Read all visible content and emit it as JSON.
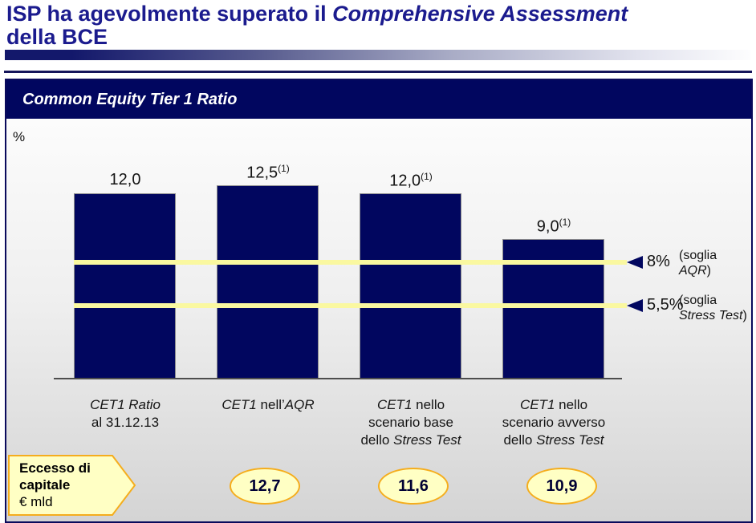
{
  "title": {
    "lines": [
      [
        {
          "t": "ISP ha agevolmente superato il "
        },
        {
          "t": "Comprehensive Assessment",
          "i": true
        }
      ],
      [
        {
          "t": "della BCE"
        }
      ]
    ]
  },
  "panel": {
    "header": "Common Equity Tier 1 Ratio",
    "unit_label": "%"
  },
  "chart_data": {
    "type": "bar",
    "title": "Common Equity Tier 1 Ratio",
    "unit": "%",
    "categories": [
      "CET1 Ratio al 31.12.13",
      "CET1 nell’AQR",
      "CET1 nello scenario base dello Stress Test",
      "CET1 nello scenario avverso dello Stress Test"
    ],
    "categories_rich": [
      [
        [
          {
            "t": "CET1 Ratio",
            "i": true
          }
        ],
        [
          {
            "t": "al 31.12.13"
          }
        ]
      ],
      [
        [
          {
            "t": "CET1",
            "i": true
          },
          {
            "t": " nell’"
          },
          {
            "t": "AQR",
            "i": true
          }
        ]
      ],
      [
        [
          {
            "t": "CET1",
            "i": true
          },
          {
            "t": " nello"
          }
        ],
        [
          {
            "t": "scenario base"
          }
        ],
        [
          {
            "t": "dello "
          },
          {
            "t": "Stress Test",
            "i": true
          }
        ]
      ],
      [
        [
          {
            "t": "CET1",
            "i": true
          },
          {
            "t": " nello"
          }
        ],
        [
          {
            "t": "scenario avverso"
          }
        ],
        [
          {
            "t": "dello "
          },
          {
            "t": "Stress Test",
            "i": true
          }
        ]
      ]
    ],
    "values": [
      12.0,
      12.5,
      12.0,
      9.0
    ],
    "value_labels": [
      {
        "text": "12,0",
        "sup": ""
      },
      {
        "text": "12,5",
        "sup": "(1)"
      },
      {
        "text": "12,0",
        "sup": "(1)"
      },
      {
        "text": "9,0",
        "sup": "(1)"
      }
    ],
    "thresholds": [
      {
        "value": 8.0,
        "label": "8%",
        "note_rich": [
          [
            {
              "t": "(soglia"
            }
          ],
          [
            {
              "t": "AQR",
              "i": true
            },
            {
              "t": ")"
            }
          ]
        ]
      },
      {
        "value": 5.5,
        "label": "5,5%",
        "note_rich": [
          [
            {
              "t": "(soglia"
            }
          ],
          [
            {
              "t": "Stress Test",
              "i": true
            },
            {
              "t": ")"
            }
          ]
        ]
      }
    ],
    "ylim": [
      0,
      13.5
    ],
    "grid": false,
    "legend": null,
    "bar_color": "#01065F",
    "threshold_line_color": "#FAF8A0"
  },
  "footer": {
    "callout_rich": [
      [
        {
          "t": "Eccesso di",
          "b": true
        }
      ],
      [
        {
          "t": "capitale",
          "b": true
        }
      ],
      [
        {
          "t": "€ mld"
        }
      ]
    ],
    "oval_values": [
      "12,7",
      "11,6",
      "10,9"
    ]
  },
  "colors": {
    "navy": "#01065F",
    "title_blue": "#1B1B8E",
    "panel_border": "#0A0A5C",
    "yellow_line": "#FAF8A0",
    "shape_fill": "#FFFFC4",
    "shape_border": "#F5AD1D"
  }
}
